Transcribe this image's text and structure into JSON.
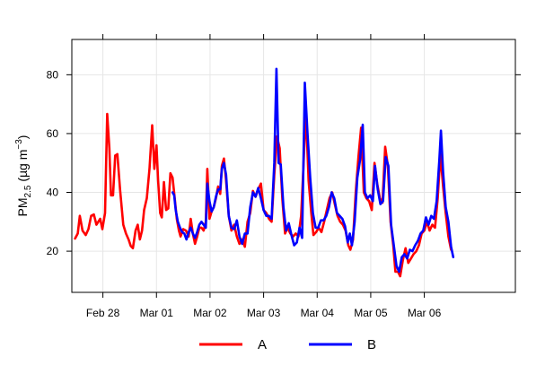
{
  "chart_data": {
    "type": "line",
    "title": "",
    "xlabel": "",
    "ylabel": "PM2.5 (µg m−3)",
    "ylabel_parts": {
      "main": "PM",
      "sub": "2.5",
      "open": " (µg m",
      "sup": "−3",
      "close": ")"
    },
    "x_unit": "days (Feb 28 = 0, Mar 01 = 1, ... Mar 06 = 7)",
    "xlim": [
      -0.58,
      7.7
    ],
    "ylim": [
      6,
      92
    ],
    "x_ticks": [
      {
        "x": 0,
        "label": "Feb 28"
      },
      {
        "x": 1,
        "label": "Mar 01"
      },
      {
        "x": 2,
        "label": "Mar 02"
      },
      {
        "x": 3,
        "label": "Mar 03"
      },
      {
        "x": 4,
        "label": "Mar 04"
      },
      {
        "x": 5,
        "label": "Mar 05"
      },
      {
        "x": 6,
        "label": "Mar 06"
      }
    ],
    "y_ticks": [
      20,
      40,
      60,
      80
    ],
    "grid": true,
    "legend": {
      "position": "bottom",
      "entries": [
        "A",
        "B"
      ]
    },
    "series": [
      {
        "name": "A",
        "color": "#ff0000",
        "points": [
          [
            -0.52,
            24.3
          ],
          [
            -0.47,
            26
          ],
          [
            -0.43,
            32
          ],
          [
            -0.38,
            27
          ],
          [
            -0.32,
            25.5
          ],
          [
            -0.27,
            27.5
          ],
          [
            -0.22,
            32
          ],
          [
            -0.17,
            32.5
          ],
          [
            -0.12,
            29
          ],
          [
            -0.05,
            31
          ],
          [
            -0.01,
            27.5
          ],
          [
            0.04,
            33
          ],
          [
            0.08,
            66.7
          ],
          [
            0.12,
            55
          ],
          [
            0.15,
            39
          ],
          [
            0.19,
            39
          ],
          [
            0.23,
            52.5
          ],
          [
            0.27,
            53
          ],
          [
            0.32,
            41
          ],
          [
            0.38,
            29
          ],
          [
            0.43,
            26
          ],
          [
            0.48,
            24
          ],
          [
            0.52,
            21.8
          ],
          [
            0.56,
            21
          ],
          [
            0.61,
            27
          ],
          [
            0.65,
            29
          ],
          [
            0.69,
            24
          ],
          [
            0.73,
            27
          ],
          [
            0.77,
            34
          ],
          [
            0.82,
            38
          ],
          [
            0.87,
            48
          ],
          [
            0.92,
            62.8
          ],
          [
            0.96,
            48
          ],
          [
            1.0,
            56
          ],
          [
            1.03,
            44
          ],
          [
            1.07,
            33
          ],
          [
            1.1,
            31.5
          ],
          [
            1.14,
            43.5
          ],
          [
            1.18,
            34
          ],
          [
            1.22,
            34.5
          ],
          [
            1.26,
            46.5
          ],
          [
            1.3,
            45
          ],
          [
            1.34,
            38
          ],
          [
            1.38,
            31
          ],
          [
            1.42,
            27
          ],
          [
            1.45,
            25
          ],
          [
            1.5,
            27.5
          ],
          [
            1.55,
            27
          ],
          [
            1.6,
            25
          ],
          [
            1.64,
            31
          ],
          [
            1.68,
            26
          ],
          [
            1.72,
            22.5
          ],
          [
            1.76,
            25
          ],
          [
            1.8,
            28
          ],
          [
            1.84,
            28
          ],
          [
            1.88,
            27
          ],
          [
            1.92,
            30
          ],
          [
            1.95,
            48
          ],
          [
            1.99,
            31
          ],
          [
            2.03,
            33.5
          ],
          [
            2.07,
            35
          ],
          [
            2.11,
            38
          ],
          [
            2.15,
            42
          ],
          [
            2.19,
            39.5
          ],
          [
            2.22,
            49
          ],
          [
            2.26,
            51.5
          ],
          [
            2.3,
            44
          ],
          [
            2.35,
            32
          ],
          [
            2.4,
            27
          ],
          [
            2.45,
            29
          ],
          [
            2.5,
            25
          ],
          [
            2.55,
            22.5
          ],
          [
            2.6,
            24
          ],
          [
            2.65,
            21.5
          ],
          [
            2.7,
            30
          ],
          [
            2.75,
            33
          ],
          [
            2.8,
            40.5
          ],
          [
            2.85,
            38.5
          ],
          [
            2.9,
            41
          ],
          [
            2.95,
            43
          ],
          [
            3.0,
            34
          ],
          [
            3.05,
            33
          ],
          [
            3.1,
            31
          ],
          [
            3.15,
            30
          ],
          [
            3.2,
            46
          ],
          [
            3.25,
            59
          ],
          [
            3.3,
            55
          ],
          [
            3.35,
            37.5
          ],
          [
            3.4,
            26
          ],
          [
            3.45,
            28
          ],
          [
            3.5,
            26
          ],
          [
            3.55,
            25
          ],
          [
            3.6,
            26
          ],
          [
            3.65,
            25
          ],
          [
            3.7,
            32
          ],
          [
            3.74,
            47
          ],
          [
            3.79,
            68
          ],
          [
            3.84,
            44
          ],
          [
            3.89,
            33
          ],
          [
            3.93,
            25.5
          ],
          [
            3.98,
            26.5
          ],
          [
            4.03,
            28
          ],
          [
            4.08,
            26.5
          ],
          [
            4.13,
            30
          ],
          [
            4.18,
            34
          ],
          [
            4.23,
            38
          ],
          [
            4.28,
            40
          ],
          [
            4.33,
            36
          ],
          [
            4.38,
            32
          ],
          [
            4.43,
            30
          ],
          [
            4.48,
            29
          ],
          [
            4.53,
            27
          ],
          [
            4.58,
            22
          ],
          [
            4.62,
            20.5
          ],
          [
            4.67,
            24
          ],
          [
            4.72,
            40
          ],
          [
            4.77,
            52
          ],
          [
            4.82,
            62
          ],
          [
            4.87,
            40
          ],
          [
            4.92,
            38
          ],
          [
            4.97,
            37
          ],
          [
            5.02,
            34
          ],
          [
            5.07,
            50
          ],
          [
            5.12,
            43
          ],
          [
            5.17,
            38
          ],
          [
            5.22,
            36.5
          ],
          [
            5.27,
            55.5
          ],
          [
            5.32,
            49
          ],
          [
            5.37,
            30
          ],
          [
            5.42,
            22
          ],
          [
            5.46,
            13
          ],
          [
            5.51,
            13
          ],
          [
            5.55,
            11.5
          ],
          [
            5.6,
            17
          ],
          [
            5.65,
            21
          ],
          [
            5.7,
            16
          ],
          [
            5.75,
            17.5
          ],
          [
            5.8,
            19
          ],
          [
            5.85,
            20
          ],
          [
            5.9,
            22
          ],
          [
            5.95,
            26
          ],
          [
            6.0,
            27
          ],
          [
            6.05,
            30
          ],
          [
            6.1,
            27
          ],
          [
            6.15,
            29
          ],
          [
            6.2,
            28
          ],
          [
            6.25,
            38
          ],
          [
            6.3,
            53
          ],
          [
            6.35,
            42
          ],
          [
            6.4,
            33
          ],
          [
            6.45,
            25
          ],
          [
            6.5,
            20.5
          ]
        ]
      },
      {
        "name": "B",
        "color": "#0000ff",
        "points": [
          [
            1.3,
            40
          ],
          [
            1.33,
            39
          ],
          [
            1.36,
            34
          ],
          [
            1.4,
            30
          ],
          [
            1.44,
            28
          ],
          [
            1.48,
            26.5
          ],
          [
            1.52,
            26
          ],
          [
            1.56,
            24
          ],
          [
            1.6,
            26.5
          ],
          [
            1.64,
            28
          ],
          [
            1.68,
            26
          ],
          [
            1.72,
            24.5
          ],
          [
            1.76,
            26.5
          ],
          [
            1.8,
            29
          ],
          [
            1.84,
            30
          ],
          [
            1.88,
            29
          ],
          [
            1.92,
            28
          ],
          [
            1.95,
            43
          ],
          [
            1.99,
            37
          ],
          [
            2.03,
            33.5
          ],
          [
            2.07,
            35
          ],
          [
            2.11,
            38.5
          ],
          [
            2.15,
            41
          ],
          [
            2.19,
            41
          ],
          [
            2.22,
            48
          ],
          [
            2.26,
            50
          ],
          [
            2.3,
            46
          ],
          [
            2.35,
            32
          ],
          [
            2.4,
            28
          ],
          [
            2.45,
            27.5
          ],
          [
            2.5,
            30.5
          ],
          [
            2.55,
            25
          ],
          [
            2.6,
            22.5
          ],
          [
            2.65,
            26
          ],
          [
            2.7,
            26
          ],
          [
            2.75,
            35
          ],
          [
            2.8,
            40
          ],
          [
            2.85,
            38.5
          ],
          [
            2.9,
            41.5
          ],
          [
            2.95,
            38
          ],
          [
            3.0,
            34
          ],
          [
            3.05,
            32
          ],
          [
            3.1,
            32
          ],
          [
            3.15,
            31
          ],
          [
            3.2,
            50
          ],
          [
            3.24,
            82
          ],
          [
            3.28,
            50
          ],
          [
            3.32,
            49.5
          ],
          [
            3.37,
            35
          ],
          [
            3.42,
            27
          ],
          [
            3.47,
            29.5
          ],
          [
            3.52,
            25.5
          ],
          [
            3.57,
            22
          ],
          [
            3.62,
            23
          ],
          [
            3.67,
            28
          ],
          [
            3.72,
            24.5
          ],
          [
            3.77,
            77.3
          ],
          [
            3.82,
            60
          ],
          [
            3.87,
            45
          ],
          [
            3.92,
            33
          ],
          [
            3.97,
            28
          ],
          [
            4.02,
            28
          ],
          [
            4.07,
            30.5
          ],
          [
            4.12,
            30.5
          ],
          [
            4.17,
            32
          ],
          [
            4.22,
            35
          ],
          [
            4.27,
            40
          ],
          [
            4.32,
            38
          ],
          [
            4.37,
            33
          ],
          [
            4.42,
            32
          ],
          [
            4.47,
            31
          ],
          [
            4.52,
            28.5
          ],
          [
            4.57,
            23
          ],
          [
            4.61,
            26
          ],
          [
            4.65,
            22
          ],
          [
            4.7,
            30
          ],
          [
            4.75,
            45
          ],
          [
            4.8,
            51
          ],
          [
            4.85,
            63
          ],
          [
            4.89,
            40
          ],
          [
            4.94,
            38
          ],
          [
            4.99,
            39
          ],
          [
            5.04,
            37
          ],
          [
            5.08,
            49
          ],
          [
            5.13,
            41
          ],
          [
            5.18,
            36
          ],
          [
            5.23,
            37
          ],
          [
            5.28,
            52
          ],
          [
            5.33,
            49
          ],
          [
            5.38,
            29
          ],
          [
            5.43,
            22
          ],
          [
            5.48,
            15
          ],
          [
            5.53,
            13
          ],
          [
            5.58,
            18
          ],
          [
            5.63,
            19
          ],
          [
            5.68,
            17.5
          ],
          [
            5.73,
            20.5
          ],
          [
            5.78,
            20
          ],
          [
            5.83,
            22
          ],
          [
            5.88,
            23.5
          ],
          [
            5.93,
            26
          ],
          [
            5.98,
            27
          ],
          [
            6.03,
            31.5
          ],
          [
            6.08,
            29
          ],
          [
            6.13,
            32
          ],
          [
            6.18,
            31
          ],
          [
            6.23,
            37
          ],
          [
            6.28,
            51
          ],
          [
            6.31,
            61
          ],
          [
            6.35,
            47
          ],
          [
            6.4,
            35
          ],
          [
            6.45,
            30
          ],
          [
            6.5,
            21.5
          ],
          [
            6.54,
            18
          ]
        ]
      }
    ]
  }
}
